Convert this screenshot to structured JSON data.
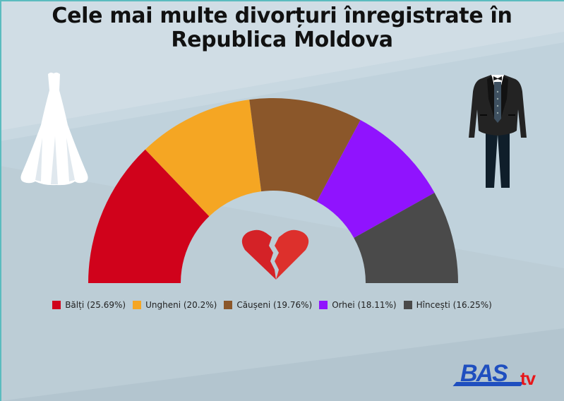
{
  "title": {
    "line1": "Cele mai multe divorțuri înregistrate în",
    "line2": "Republica Moldova"
  },
  "icons": {
    "left": "wedding-dress-icon",
    "right": "tuxedo-icon",
    "center": "broken-heart-icon"
  },
  "logo": {
    "main": "BAS",
    "suffix": "tv",
    "main_color": "#1f4fbf",
    "suffix_color": "#e8161a"
  },
  "colors": {
    "background_light": "#d0dde5",
    "background": "#c0d2dc",
    "background_dark": "#b3c5cf",
    "frame": "#5bbcbf",
    "heart": "#d9282a"
  },
  "chart_data": {
    "type": "pie",
    "variant": "semi-donut",
    "title": "Cele mai multe divorțuri înregistrate în Republica Moldova",
    "categories": [
      "Bălți",
      "Ungheni",
      "Căușeni",
      "Orhei",
      "Hîncești"
    ],
    "values": [
      25.69,
      20.2,
      19.76,
      18.11,
      16.25
    ],
    "unit": "%",
    "colors": [
      "#d0021b",
      "#f5a623",
      "#8b572a",
      "#9013fe",
      "#4a4a4a"
    ],
    "legend_labels": [
      "Bălți (25.69%)",
      "Ungheni (20.2%)",
      "Căușeni (19.76%)",
      "Orhei (18.11%)",
      "Hîncești (16.25%)"
    ],
    "legend_position": "bottom",
    "start_angle_deg": 180,
    "sweep_deg": 180,
    "inner_radius_ratio": 0.5
  }
}
